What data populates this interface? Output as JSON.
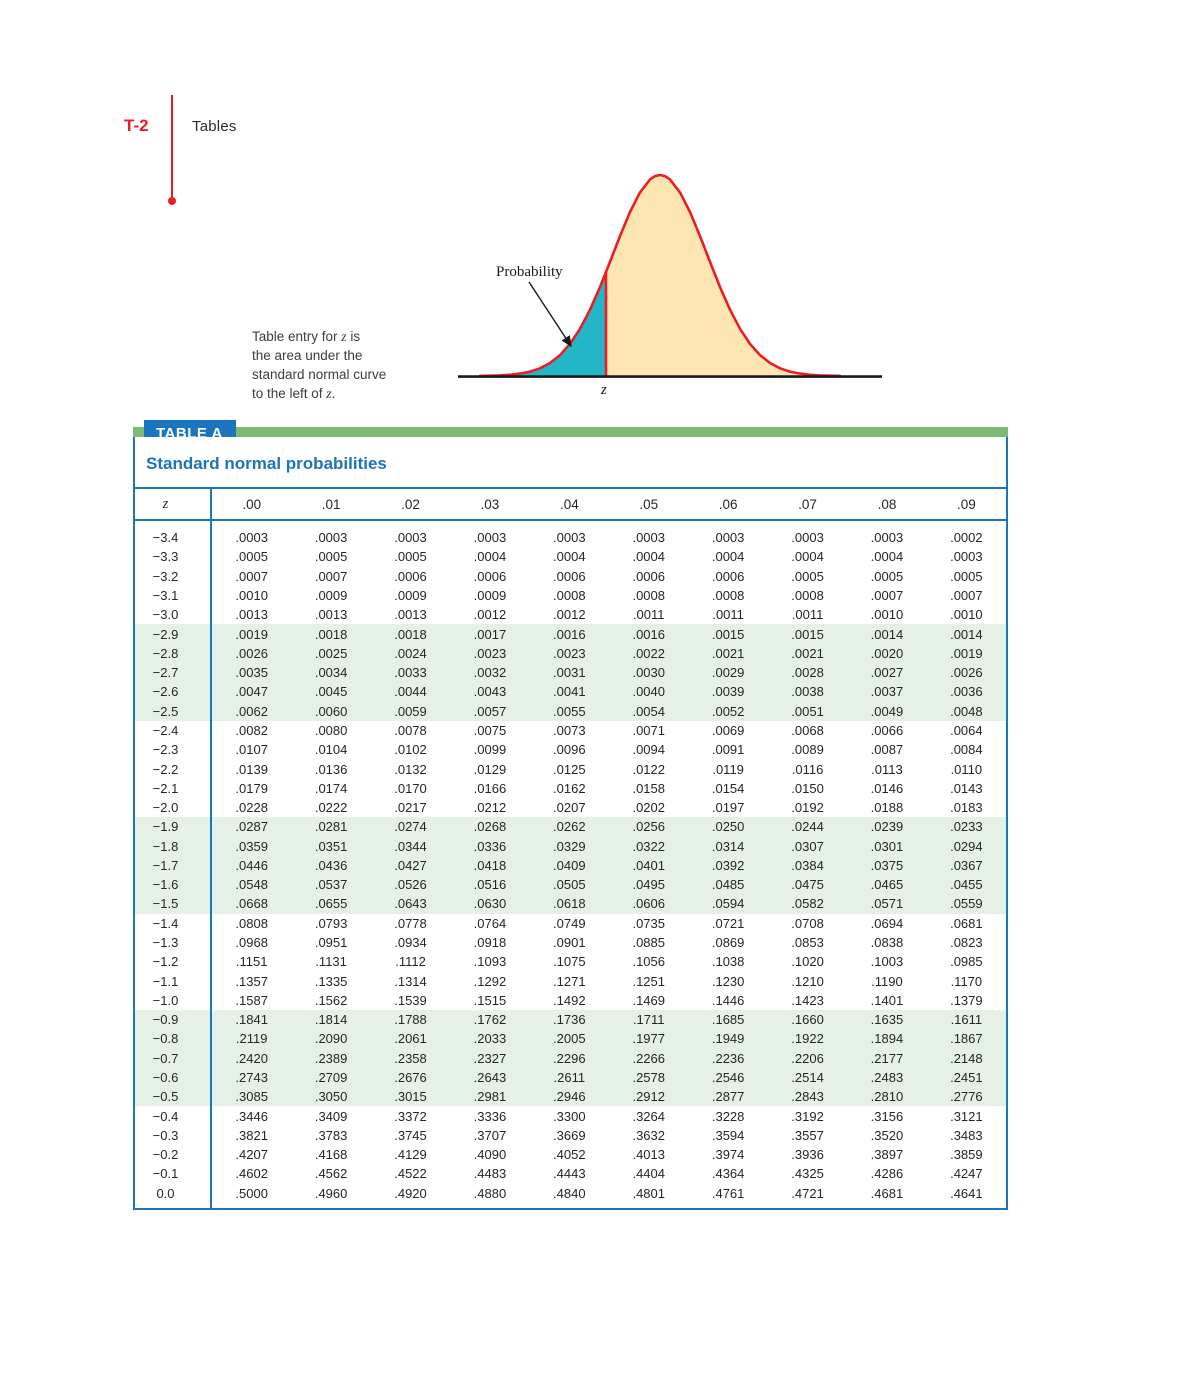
{
  "page": {
    "page_label": "T-2",
    "section_title": "Tables"
  },
  "figure": {
    "probability_label": "Probability",
    "z_axis_label": "z",
    "caption_lines": [
      "Table entry for z is",
      "the area under the",
      "standard normal curve",
      "to the left of z."
    ],
    "colors": {
      "curve_stroke": "#ed1c24",
      "left_tail_fill": "#22b6c6",
      "body_fill": "#fde6b2",
      "axis": "#1a1a1a"
    }
  },
  "table": {
    "tag_label": "TABLE A",
    "title": "Standard normal probabilities",
    "z_header": "z",
    "column_headers": [
      ".00",
      ".01",
      ".02",
      ".03",
      ".04",
      ".05",
      ".06",
      ".07",
      ".08",
      ".09"
    ],
    "accent_colors": {
      "blue": "#1b75bc",
      "green_bar": "#7cba77",
      "row_band_green": "#e6f1e5"
    },
    "rows": [
      {
        "z": "−3.4",
        "values": [
          ".0003",
          ".0003",
          ".0003",
          ".0003",
          ".0003",
          ".0003",
          ".0003",
          ".0003",
          ".0003",
          ".0002"
        ]
      },
      {
        "z": "−3.3",
        "values": [
          ".0005",
          ".0005",
          ".0005",
          ".0004",
          ".0004",
          ".0004",
          ".0004",
          ".0004",
          ".0004",
          ".0003"
        ]
      },
      {
        "z": "−3.2",
        "values": [
          ".0007",
          ".0007",
          ".0006",
          ".0006",
          ".0006",
          ".0006",
          ".0006",
          ".0005",
          ".0005",
          ".0005"
        ]
      },
      {
        "z": "−3.1",
        "values": [
          ".0010",
          ".0009",
          ".0009",
          ".0009",
          ".0008",
          ".0008",
          ".0008",
          ".0008",
          ".0007",
          ".0007"
        ]
      },
      {
        "z": "−3.0",
        "values": [
          ".0013",
          ".0013",
          ".0013",
          ".0012",
          ".0012",
          ".0011",
          ".0011",
          ".0011",
          ".0010",
          ".0010"
        ]
      },
      {
        "z": "−2.9",
        "values": [
          ".0019",
          ".0018",
          ".0018",
          ".0017",
          ".0016",
          ".0016",
          ".0015",
          ".0015",
          ".0014",
          ".0014"
        ]
      },
      {
        "z": "−2.8",
        "values": [
          ".0026",
          ".0025",
          ".0024",
          ".0023",
          ".0023",
          ".0022",
          ".0021",
          ".0021",
          ".0020",
          ".0019"
        ]
      },
      {
        "z": "−2.7",
        "values": [
          ".0035",
          ".0034",
          ".0033",
          ".0032",
          ".0031",
          ".0030",
          ".0029",
          ".0028",
          ".0027",
          ".0026"
        ]
      },
      {
        "z": "−2.6",
        "values": [
          ".0047",
          ".0045",
          ".0044",
          ".0043",
          ".0041",
          ".0040",
          ".0039",
          ".0038",
          ".0037",
          ".0036"
        ]
      },
      {
        "z": "−2.5",
        "values": [
          ".0062",
          ".0060",
          ".0059",
          ".0057",
          ".0055",
          ".0054",
          ".0052",
          ".0051",
          ".0049",
          ".0048"
        ]
      },
      {
        "z": "−2.4",
        "values": [
          ".0082",
          ".0080",
          ".0078",
          ".0075",
          ".0073",
          ".0071",
          ".0069",
          ".0068",
          ".0066",
          ".0064"
        ]
      },
      {
        "z": "−2.3",
        "values": [
          ".0107",
          ".0104",
          ".0102",
          ".0099",
          ".0096",
          ".0094",
          ".0091",
          ".0089",
          ".0087",
          ".0084"
        ]
      },
      {
        "z": "−2.2",
        "values": [
          ".0139",
          ".0136",
          ".0132",
          ".0129",
          ".0125",
          ".0122",
          ".0119",
          ".0116",
          ".0113",
          ".0110"
        ]
      },
      {
        "z": "−2.1",
        "values": [
          ".0179",
          ".0174",
          ".0170",
          ".0166",
          ".0162",
          ".0158",
          ".0154",
          ".0150",
          ".0146",
          ".0143"
        ]
      },
      {
        "z": "−2.0",
        "values": [
          ".0228",
          ".0222",
          ".0217",
          ".0212",
          ".0207",
          ".0202",
          ".0197",
          ".0192",
          ".0188",
          ".0183"
        ]
      },
      {
        "z": "−1.9",
        "values": [
          ".0287",
          ".0281",
          ".0274",
          ".0268",
          ".0262",
          ".0256",
          ".0250",
          ".0244",
          ".0239",
          ".0233"
        ]
      },
      {
        "z": "−1.8",
        "values": [
          ".0359",
          ".0351",
          ".0344",
          ".0336",
          ".0329",
          ".0322",
          ".0314",
          ".0307",
          ".0301",
          ".0294"
        ]
      },
      {
        "z": "−1.7",
        "values": [
          ".0446",
          ".0436",
          ".0427",
          ".0418",
          ".0409",
          ".0401",
          ".0392",
          ".0384",
          ".0375",
          ".0367"
        ]
      },
      {
        "z": "−1.6",
        "values": [
          ".0548",
          ".0537",
          ".0526",
          ".0516",
          ".0505",
          ".0495",
          ".0485",
          ".0475",
          ".0465",
          ".0455"
        ]
      },
      {
        "z": "−1.5",
        "values": [
          ".0668",
          ".0655",
          ".0643",
          ".0630",
          ".0618",
          ".0606",
          ".0594",
          ".0582",
          ".0571",
          ".0559"
        ]
      },
      {
        "z": "−1.4",
        "values": [
          ".0808",
          ".0793",
          ".0778",
          ".0764",
          ".0749",
          ".0735",
          ".0721",
          ".0708",
          ".0694",
          ".0681"
        ]
      },
      {
        "z": "−1.3",
        "values": [
          ".0968",
          ".0951",
          ".0934",
          ".0918",
          ".0901",
          ".0885",
          ".0869",
          ".0853",
          ".0838",
          ".0823"
        ]
      },
      {
        "z": "−1.2",
        "values": [
          ".1151",
          ".1131",
          ".1112",
          ".1093",
          ".1075",
          ".1056",
          ".1038",
          ".1020",
          ".1003",
          ".0985"
        ]
      },
      {
        "z": "−1.1",
        "values": [
          ".1357",
          ".1335",
          ".1314",
          ".1292",
          ".1271",
          ".1251",
          ".1230",
          ".1210",
          ".1190",
          ".1170"
        ]
      },
      {
        "z": "−1.0",
        "values": [
          ".1587",
          ".1562",
          ".1539",
          ".1515",
          ".1492",
          ".1469",
          ".1446",
          ".1423",
          ".1401",
          ".1379"
        ]
      },
      {
        "z": "−0.9",
        "values": [
          ".1841",
          ".1814",
          ".1788",
          ".1762",
          ".1736",
          ".1711",
          ".1685",
          ".1660",
          ".1635",
          ".1611"
        ]
      },
      {
        "z": "−0.8",
        "values": [
          ".2119",
          ".2090",
          ".2061",
          ".2033",
          ".2005",
          ".1977",
          ".1949",
          ".1922",
          ".1894",
          ".1867"
        ]
      },
      {
        "z": "−0.7",
        "values": [
          ".2420",
          ".2389",
          ".2358",
          ".2327",
          ".2296",
          ".2266",
          ".2236",
          ".2206",
          ".2177",
          ".2148"
        ]
      },
      {
        "z": "−0.6",
        "values": [
          ".2743",
          ".2709",
          ".2676",
          ".2643",
          ".2611",
          ".2578",
          ".2546",
          ".2514",
          ".2483",
          ".2451"
        ]
      },
      {
        "z": "−0.5",
        "values": [
          ".3085",
          ".3050",
          ".3015",
          ".2981",
          ".2946",
          ".2912",
          ".2877",
          ".2843",
          ".2810",
          ".2776"
        ]
      },
      {
        "z": "−0.4",
        "values": [
          ".3446",
          ".3409",
          ".3372",
          ".3336",
          ".3300",
          ".3264",
          ".3228",
          ".3192",
          ".3156",
          ".3121"
        ]
      },
      {
        "z": "−0.3",
        "values": [
          ".3821",
          ".3783",
          ".3745",
          ".3707",
          ".3669",
          ".3632",
          ".3594",
          ".3557",
          ".3520",
          ".3483"
        ]
      },
      {
        "z": "−0.2",
        "values": [
          ".4207",
          ".4168",
          ".4129",
          ".4090",
          ".4052",
          ".4013",
          ".3974",
          ".3936",
          ".3897",
          ".3859"
        ]
      },
      {
        "z": "−0.1",
        "values": [
          ".4602",
          ".4562",
          ".4522",
          ".4483",
          ".4443",
          ".4404",
          ".4364",
          ".4325",
          ".4286",
          ".4247"
        ]
      },
      {
        "z": "0.0",
        "values": [
          ".5000",
          ".4960",
          ".4920",
          ".4880",
          ".4840",
          ".4801",
          ".4761",
          ".4721",
          ".4681",
          ".4641"
        ]
      }
    ]
  }
}
